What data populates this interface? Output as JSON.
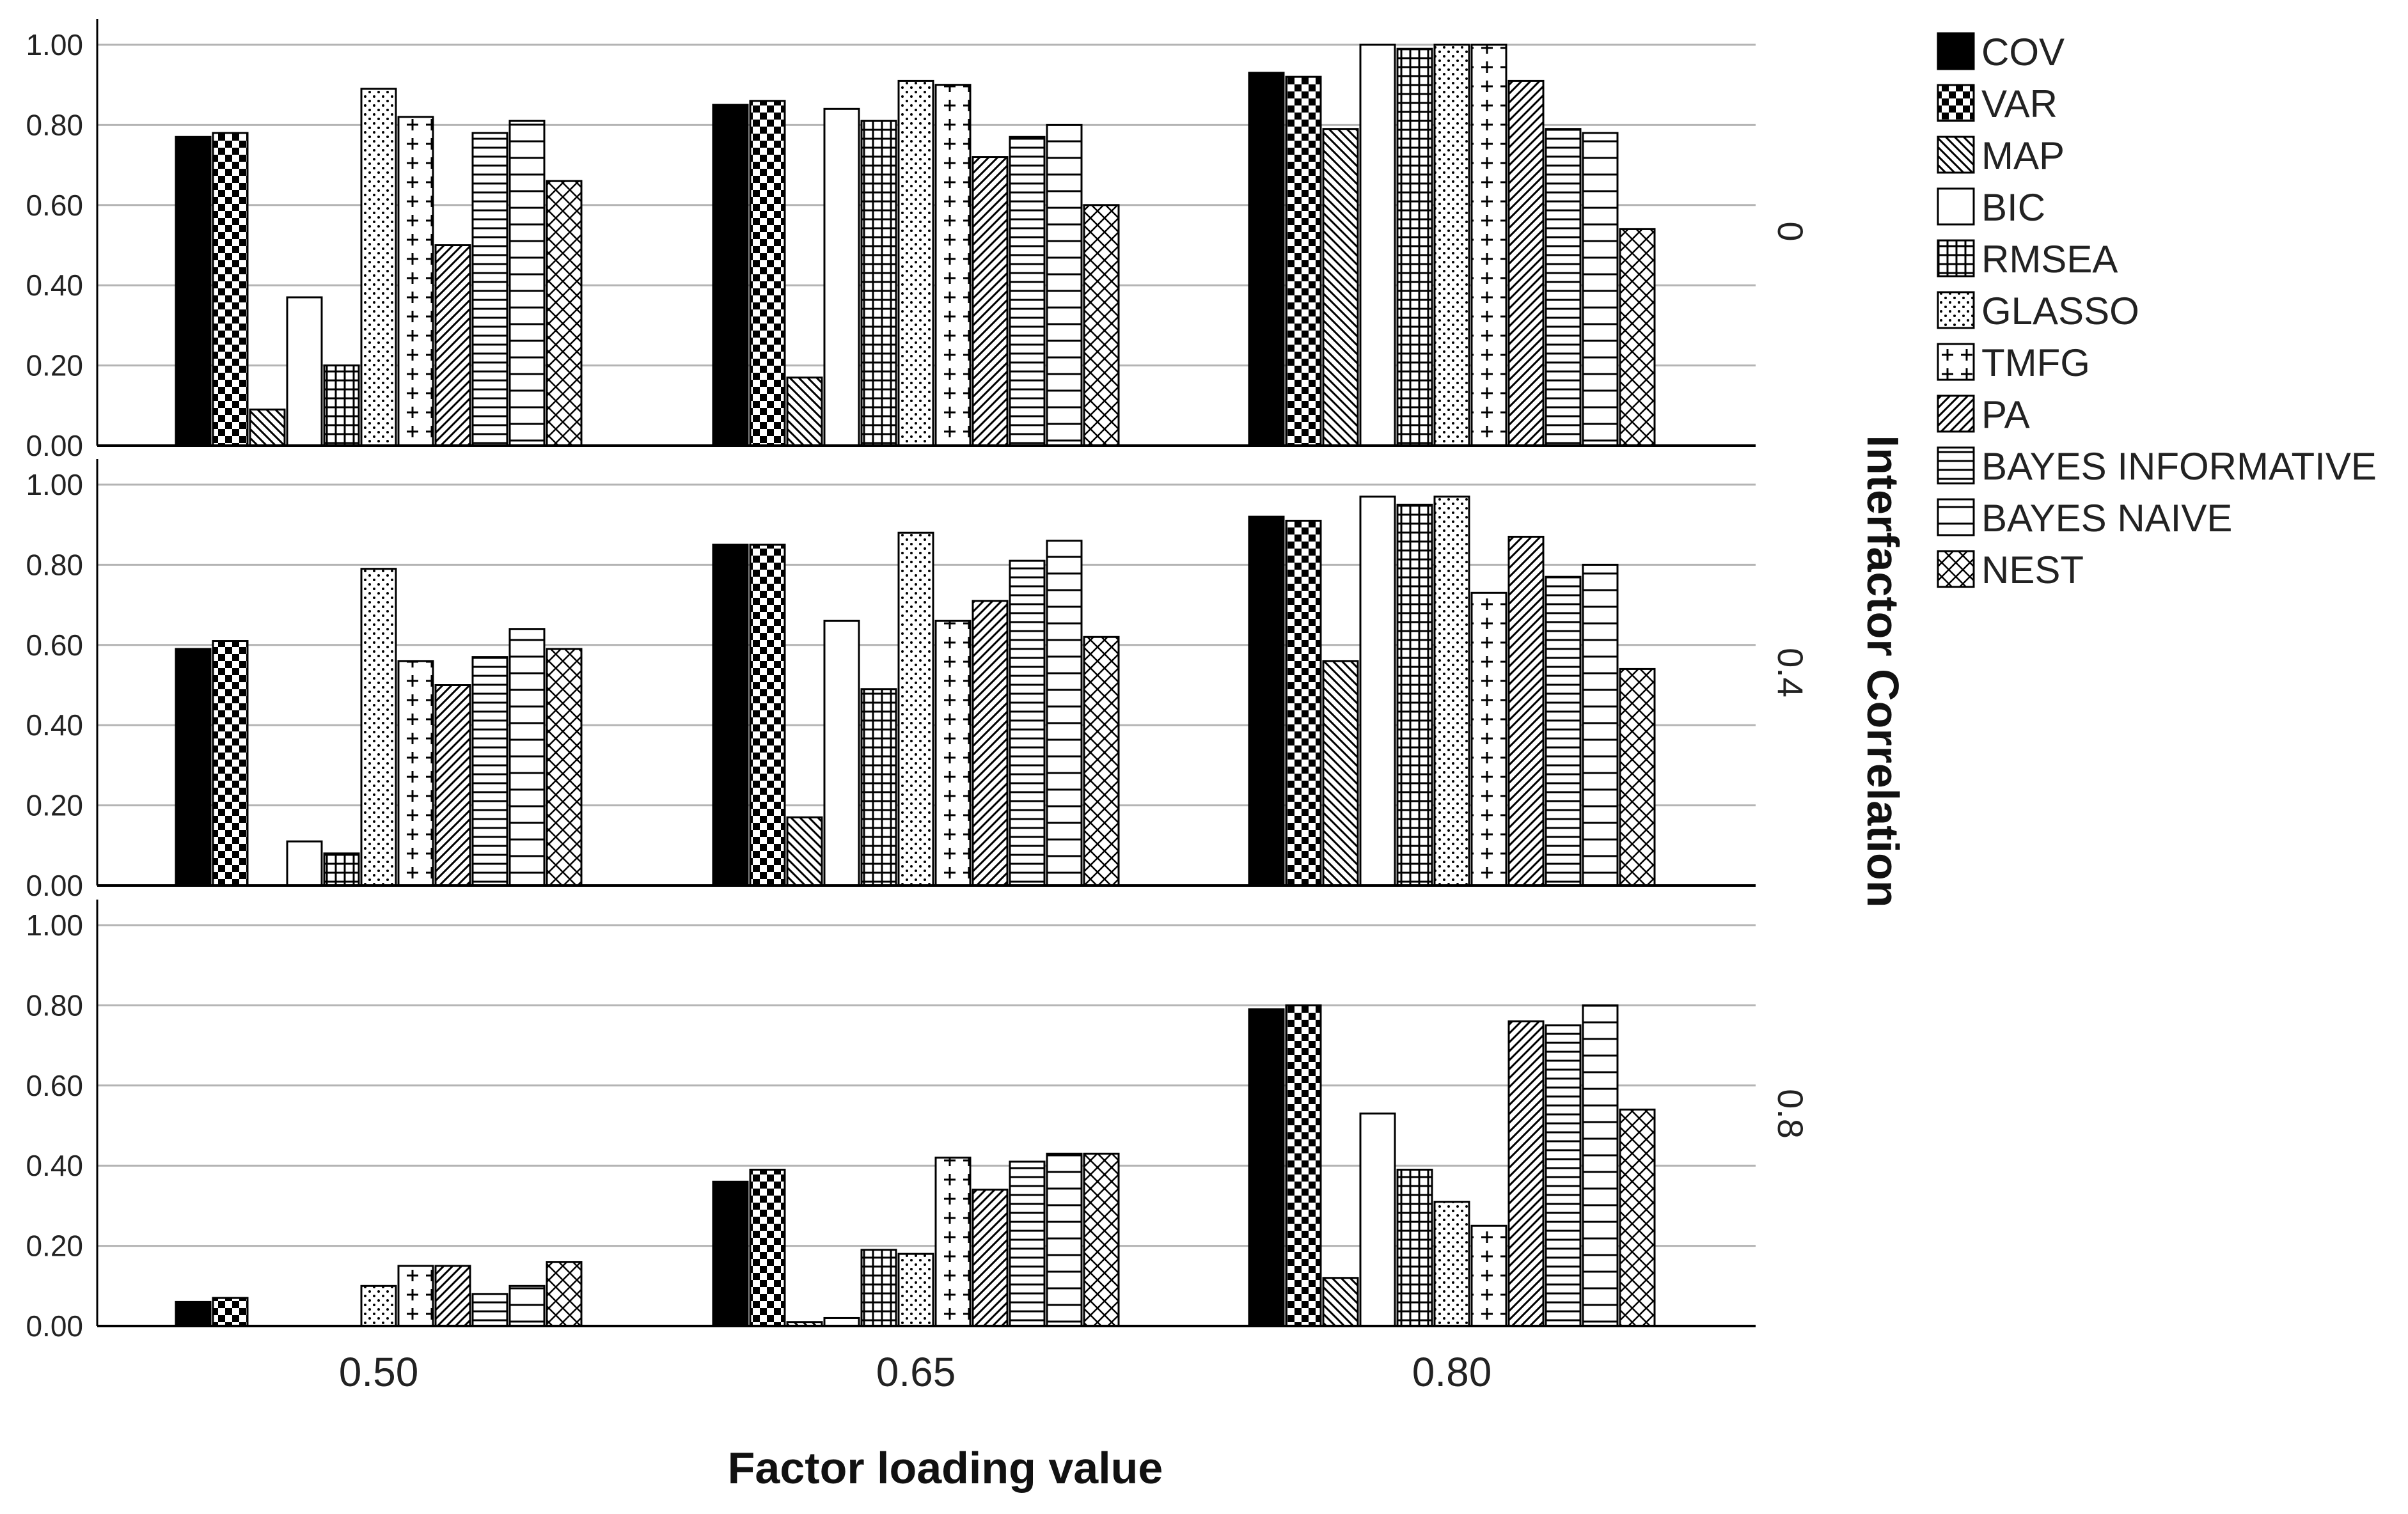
{
  "chart_data": {
    "type": "bar",
    "xlabel": "Factor loading value",
    "facet_label": "Interfactor Correlation",
    "categories": [
      "0.50",
      "0.65",
      "0.80"
    ],
    "yticks": [
      "0.00",
      "0.20",
      "0.40",
      "0.60",
      "0.80",
      "1.00"
    ],
    "ylim": [
      0,
      1
    ],
    "grid": true,
    "legend_position": "top-right",
    "series": [
      {
        "name": "COV",
        "pattern": "solid"
      },
      {
        "name": "VAR",
        "pattern": "checker"
      },
      {
        "name": "MAP",
        "pattern": "diag-back"
      },
      {
        "name": "BIC",
        "pattern": "empty"
      },
      {
        "name": "RMSEA",
        "pattern": "grid"
      },
      {
        "name": "GLASSO",
        "pattern": "dots"
      },
      {
        "name": "TMFG",
        "pattern": "plus"
      },
      {
        "name": "PA",
        "pattern": "diag-fwd"
      },
      {
        "name": "BAYES INFORMATIVE",
        "pattern": "hlines-dense"
      },
      {
        "name": "BAYES NAIVE",
        "pattern": "hlines"
      },
      {
        "name": "NEST",
        "pattern": "crosshatch"
      }
    ],
    "facets": [
      {
        "label": "0",
        "values": [
          [
            0.77,
            0.78,
            0.09,
            0.37,
            0.2,
            0.89,
            0.82,
            0.5,
            0.78,
            0.81,
            0.66
          ],
          [
            0.85,
            0.86,
            0.17,
            0.84,
            0.81,
            0.91,
            0.9,
            0.72,
            0.77,
            0.8,
            0.6
          ],
          [
            0.93,
            0.92,
            0.79,
            1.0,
            0.99,
            1.0,
            1.0,
            0.91,
            0.79,
            0.78,
            0.54
          ]
        ]
      },
      {
        "label": "0.4",
        "values": [
          [
            0.59,
            0.61,
            0.0,
            0.11,
            0.08,
            0.79,
            0.56,
            0.5,
            0.57,
            0.64,
            0.59
          ],
          [
            0.85,
            0.85,
            0.17,
            0.66,
            0.49,
            0.88,
            0.66,
            0.71,
            0.81,
            0.86,
            0.62
          ],
          [
            0.92,
            0.91,
            0.56,
            0.97,
            0.95,
            0.97,
            0.73,
            0.87,
            0.77,
            0.8,
            0.54
          ]
        ]
      },
      {
        "label": "0.8",
        "values": [
          [
            0.06,
            0.07,
            0.0,
            0.0,
            0.0,
            0.1,
            0.15,
            0.15,
            0.08,
            0.1,
            0.16
          ],
          [
            0.36,
            0.39,
            0.01,
            0.02,
            0.19,
            0.18,
            0.42,
            0.34,
            0.41,
            0.43,
            0.43
          ],
          [
            0.79,
            0.8,
            0.12,
            0.53,
            0.39,
            0.31,
            0.25,
            0.76,
            0.75,
            0.8,
            0.54
          ]
        ]
      }
    ]
  }
}
